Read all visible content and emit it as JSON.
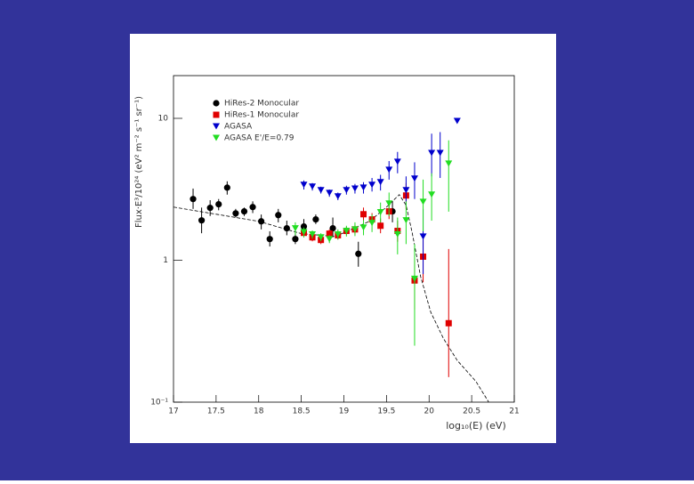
{
  "chart_data": {
    "type": "scatter",
    "xlabel": "log₁₀(E) (eV)",
    "ylabel": "Flux·E³/10²⁴ (eV² m⁻² s⁻¹ sr⁻¹)",
    "xlim": [
      17,
      21
    ],
    "xticks": [
      17,
      17.5,
      18,
      18.5,
      19,
      19.5,
      20,
      20.5,
      21
    ],
    "ylim": [
      0.1,
      20
    ],
    "log_y": true,
    "yticks": [
      {
        "value": 0.1,
        "label": "10⁻¹"
      },
      1,
      10
    ],
    "series": [
      {
        "name": "HiRes-2 Monocular",
        "color": "#000000",
        "marker": "circle",
        "x": [
          17.23,
          17.33,
          17.43,
          17.53,
          17.63,
          17.73,
          17.83,
          17.93,
          18.03,
          18.13,
          18.23,
          18.33,
          18.43,
          18.53,
          18.67,
          18.87,
          19.17,
          19.57
        ],
        "values": [
          2.7,
          1.91,
          2.34,
          2.48,
          3.25,
          2.14,
          2.21,
          2.37,
          1.88,
          1.41,
          2.08,
          1.68,
          1.41,
          1.73,
          1.94,
          1.68,
          1.11,
          2.21
        ],
        "ylow": [
          2.3,
          1.55,
          2.05,
          2.25,
          2.9,
          2.0,
          2.05,
          2.15,
          1.65,
          1.25,
          1.85,
          1.5,
          1.3,
          1.55,
          1.8,
          1.45,
          0.9,
          1.85
        ],
        "yhigh": [
          3.2,
          2.35,
          2.65,
          2.7,
          3.6,
          2.3,
          2.35,
          2.6,
          2.1,
          1.6,
          2.3,
          1.9,
          1.55,
          1.95,
          2.1,
          2.0,
          1.35,
          2.6
        ]
      },
      {
        "name": "HiRes-1 Monocular",
        "color": "#e00000",
        "marker": "square",
        "x": [
          18.53,
          18.63,
          18.73,
          18.83,
          18.93,
          19.03,
          19.13,
          19.23,
          19.33,
          19.43,
          19.53,
          19.63,
          19.73,
          19.83,
          19.93,
          20.23
        ],
        "values": [
          1.56,
          1.45,
          1.39,
          1.54,
          1.5,
          1.61,
          1.65,
          2.11,
          1.94,
          1.75,
          2.21,
          1.61,
          2.86,
          0.72,
          1.06,
          0.36
        ],
        "ylow": [
          1.45,
          1.36,
          1.3,
          1.44,
          1.4,
          1.5,
          1.52,
          1.9,
          1.75,
          1.55,
          1.95,
          1.35,
          2.3,
          0.45,
          0.7,
          0.15
        ],
        "yhigh": [
          1.67,
          1.55,
          1.48,
          1.65,
          1.6,
          1.72,
          1.78,
          2.35,
          2.15,
          1.97,
          2.5,
          1.9,
          3.5,
          1.0,
          1.5,
          1.2
        ]
      },
      {
        "name": "AGASA",
        "color": "#0000cc",
        "marker": "triangle-down",
        "x": [
          18.53,
          18.63,
          18.73,
          18.83,
          18.93,
          19.03,
          19.13,
          19.23,
          19.33,
          19.43,
          19.53,
          19.63,
          19.73,
          19.83,
          19.93,
          20.03,
          20.13,
          20.33
        ],
        "values": [
          3.4,
          3.3,
          3.12,
          2.98,
          2.82,
          3.12,
          3.2,
          3.25,
          3.4,
          3.55,
          4.34,
          4.94,
          3.12,
          3.76,
          1.47,
          5.7,
          5.7,
          9.58
        ],
        "ylow": [
          3.15,
          3.1,
          2.95,
          2.8,
          2.65,
          2.9,
          2.95,
          2.95,
          3.05,
          3.1,
          3.7,
          4.1,
          2.4,
          2.7,
          0.8,
          3.9,
          3.8,
          9.58
        ],
        "yhigh": [
          3.65,
          3.5,
          3.3,
          3.15,
          3.0,
          3.35,
          3.45,
          3.55,
          3.8,
          4.0,
          5.0,
          5.8,
          3.9,
          4.9,
          2.3,
          7.8,
          8.0,
          9.58
        ]
      },
      {
        "name": "AGASA E'/E=0.79",
        "color": "#22dd22",
        "marker": "triangle-down",
        "x": [
          18.43,
          18.53,
          18.63,
          18.73,
          18.83,
          18.93,
          19.03,
          19.13,
          19.23,
          19.33,
          19.43,
          19.53,
          19.63,
          19.73,
          19.83,
          19.93,
          20.03,
          20.23
        ],
        "values": [
          1.68,
          1.58,
          1.52,
          1.45,
          1.41,
          1.52,
          1.61,
          1.65,
          1.7,
          1.83,
          2.18,
          2.51,
          1.52,
          1.91,
          0.74,
          2.58,
          2.9,
          4.8
        ],
        "ylow": [
          1.5,
          1.45,
          1.42,
          1.36,
          1.32,
          1.4,
          1.47,
          1.48,
          1.5,
          1.58,
          1.85,
          2.05,
          1.1,
          1.3,
          0.25,
          1.6,
          1.9,
          2.2
        ],
        "yhigh": [
          1.85,
          1.7,
          1.62,
          1.55,
          1.5,
          1.65,
          1.75,
          1.85,
          1.92,
          2.1,
          2.55,
          3.0,
          2.0,
          2.6,
          1.3,
          3.7,
          4.1,
          7.0
        ]
      }
    ],
    "fit": {
      "x": [
        17,
        18,
        18.5,
        18.9,
        19.3,
        19.5,
        19.65,
        19.73,
        19.8,
        19.9,
        20.02,
        20.17,
        20.33,
        20.55,
        20.7
      ],
      "values": [
        2.37,
        1.88,
        1.54,
        1.47,
        1.88,
        2.37,
        2.9,
        2.44,
        1.58,
        0.77,
        0.43,
        0.28,
        0.197,
        0.14,
        0.1
      ]
    }
  }
}
